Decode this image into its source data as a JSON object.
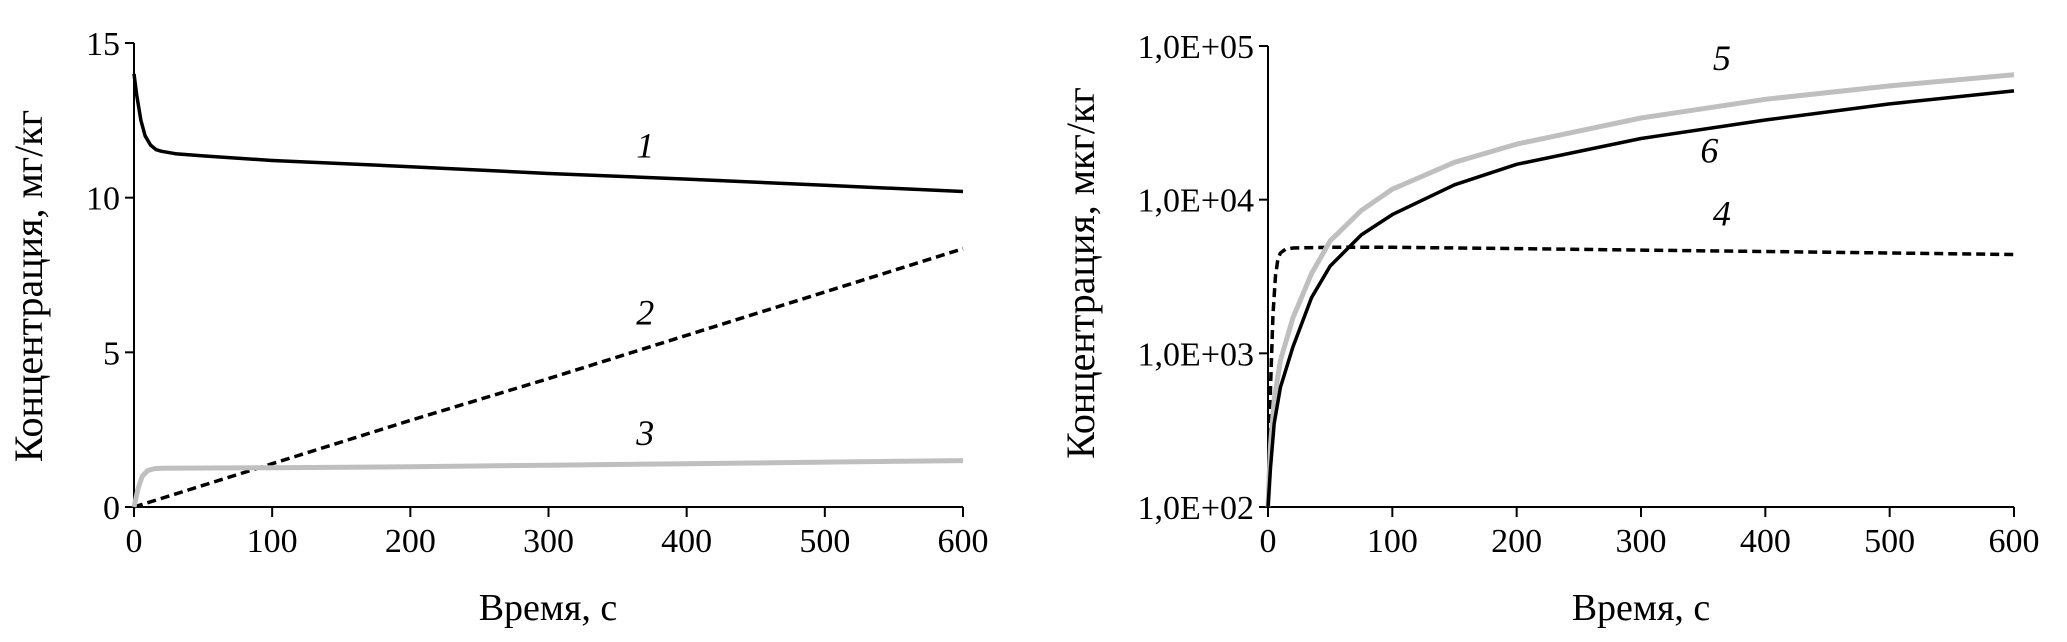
{
  "chart_data": [
    {
      "type": "line",
      "xlabel": "Время, с",
      "ylabel": "Концентрация, мг/кг",
      "xlim": [
        0,
        600
      ],
      "ylim": [
        0,
        15
      ],
      "xticks": [
        "0",
        "100",
        "200",
        "300",
        "400",
        "500",
        "600"
      ],
      "yticks": [
        "0",
        "5",
        "10",
        "15"
      ],
      "yscale": "linear",
      "grid": false,
      "series": [
        {
          "name": "1",
          "color": "#000000",
          "dash": "solid",
          "x": [
            0,
            2,
            5,
            8,
            12,
            16,
            20,
            30,
            50,
            100,
            200,
            300,
            400,
            500,
            600
          ],
          "y": [
            14.0,
            13.3,
            12.5,
            12.0,
            11.7,
            11.55,
            11.5,
            11.42,
            11.35,
            11.2,
            11.0,
            10.78,
            10.6,
            10.4,
            10.2
          ]
        },
        {
          "name": "2",
          "color": "#000000",
          "dash": "dashed",
          "x": [
            0,
            100,
            200,
            300,
            400,
            500,
            600
          ],
          "y": [
            0,
            1.4,
            2.8,
            4.15,
            5.55,
            6.95,
            8.35
          ]
        },
        {
          "name": "3",
          "color": "#bfbfbf",
          "dash": "solid",
          "x": [
            0,
            3,
            6,
            10,
            15,
            20,
            100,
            200,
            300,
            400,
            500,
            600
          ],
          "y": [
            0,
            0.6,
            1.0,
            1.18,
            1.24,
            1.25,
            1.27,
            1.3,
            1.35,
            1.4,
            1.45,
            1.5
          ]
        }
      ],
      "labels": [
        {
          "text": "1",
          "x": 370,
          "y": 11.3
        },
        {
          "text": "2",
          "x": 370,
          "y": 5.9
        },
        {
          "text": "3",
          "x": 370,
          "y": 2.0
        }
      ]
    },
    {
      "type": "line",
      "xlabel": "Время, с",
      "ylabel": "Концентрация, мкг/кг",
      "xlim": [
        0,
        600
      ],
      "ylim": [
        100,
        100000
      ],
      "xticks": [
        "0",
        "100",
        "200",
        "300",
        "400",
        "500",
        "600"
      ],
      "yticks": [
        "1,0E+02",
        "1,0E+03",
        "1,0E+04",
        "1,0E+05"
      ],
      "yscale": "log",
      "grid": false,
      "series": [
        {
          "name": "4",
          "color": "#000000",
          "dash": "dashed",
          "x": [
            0,
            2,
            4,
            6,
            8,
            10,
            14,
            20,
            50,
            100,
            200,
            300,
            400,
            500,
            600
          ],
          "y": [
            100,
            600,
            1800,
            3200,
            4100,
            4500,
            4750,
            4850,
            4900,
            4900,
            4800,
            4700,
            4600,
            4500,
            4400
          ]
        },
        {
          "name": "5",
          "color": "#bfbfbf",
          "dash": "solid",
          "x": [
            0,
            2,
            5,
            10,
            20,
            35,
            50,
            75,
            100,
            150,
            200,
            300,
            400,
            500,
            600
          ],
          "y": [
            100,
            250,
            500,
            900,
            1700,
            3300,
            5400,
            8500,
            11700,
            17500,
            23000,
            34000,
            45000,
            55000,
            65000
          ]
        },
        {
          "name": "6",
          "color": "#000000",
          "dash": "solid",
          "x": [
            0,
            2,
            5,
            10,
            20,
            35,
            50,
            75,
            100,
            150,
            200,
            300,
            400,
            500,
            600
          ],
          "y": [
            100,
            180,
            350,
            600,
            1100,
            2300,
            3700,
            5900,
            8000,
            12500,
            17000,
            25000,
            33000,
            42000,
            51000
          ]
        }
      ],
      "labels": [
        {
          "text": "4",
          "x": 365,
          "y": 6800
        },
        {
          "text": "5",
          "x": 365,
          "y": 70000
        },
        {
          "text": "6",
          "x": 355,
          "y": 17500
        }
      ]
    }
  ]
}
